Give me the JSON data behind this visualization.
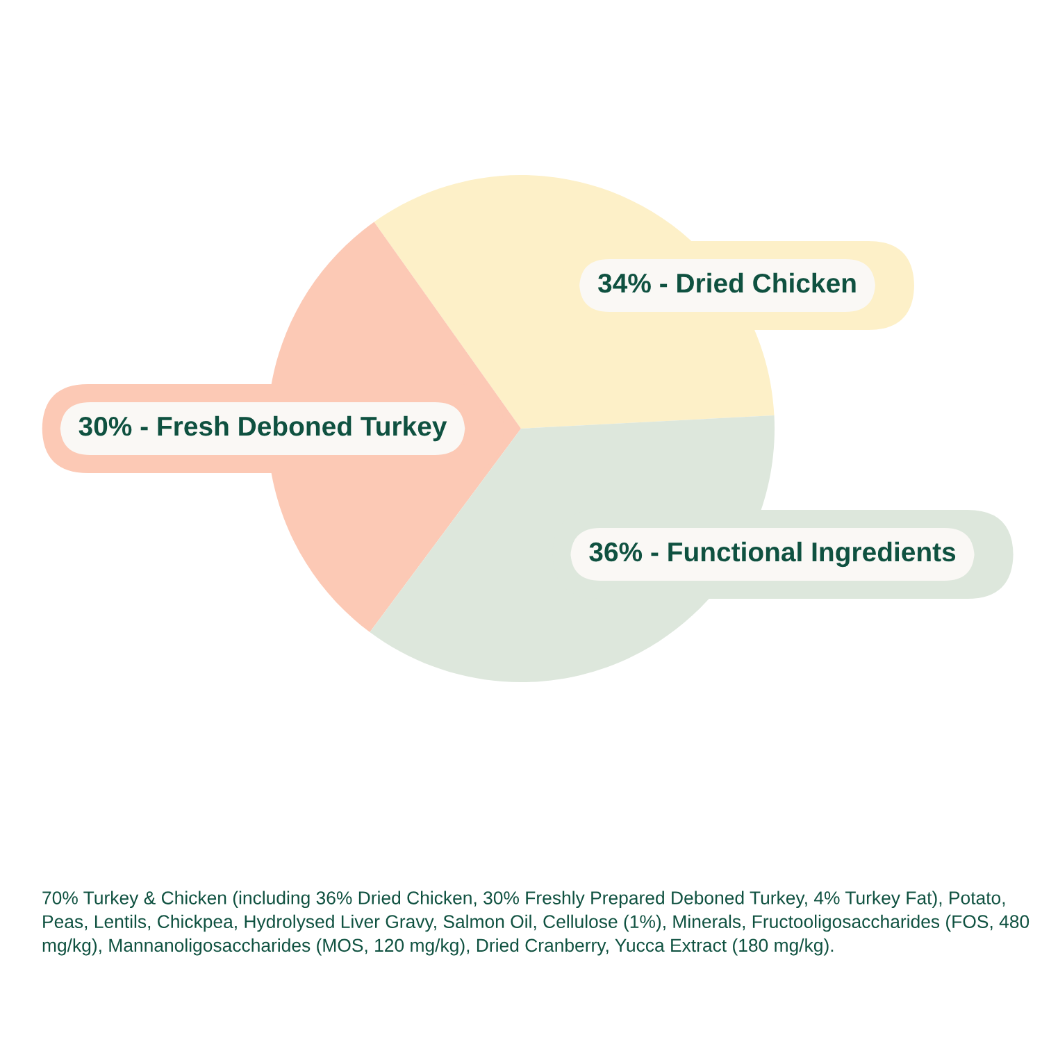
{
  "chart_data": {
    "type": "pie",
    "categories": [
      "34% - Dried Chicken",
      "30% - Fresh Deboned Turkey",
      "36% - Functional Ingredients"
    ],
    "values": [
      34,
      30,
      36
    ],
    "colors": [
      "#fdf0c8",
      "#fcc9b5",
      "#dde7dc"
    ],
    "legend": false,
    "annotations": [
      "70% Turkey & Chicken (including 36% Dried Chicken, 30% Freshly Prepared Deboned Turkey, 4% Turkey Fat), Potato, Peas, Lentils, Chickpea, Hydrolysed Liver Gravy, Salmon Oil, Cellulose (1%), Minerals, Fructooligosaccharides (FOS, 480 mg/kg), Mannanoligosaccharides (MOS, 120 mg/kg), Dried Cranberry, Yucca Extract (180 mg/kg)."
    ]
  }
}
